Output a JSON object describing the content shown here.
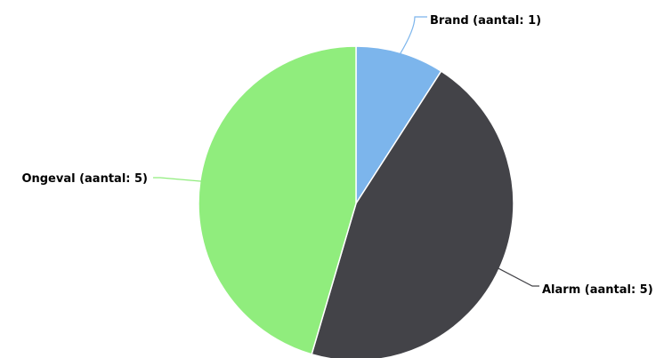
{
  "chart_data": {
    "type": "pie",
    "title": "",
    "slices": [
      {
        "name": "Brand",
        "value": 1,
        "label": "Brand (aantal: 1)",
        "color": "#7cb5ec"
      },
      {
        "name": "Alarm",
        "value": 5,
        "label": "Alarm (aantal: 5)",
        "color": "#434348"
      },
      {
        "name": "Ongeval",
        "value": 5,
        "label": "Ongeval (aantal: 5)",
        "color": "#90ed7d"
      }
    ],
    "start_angle": "12 o'clock",
    "direction": "clockwise",
    "legend": "none"
  }
}
